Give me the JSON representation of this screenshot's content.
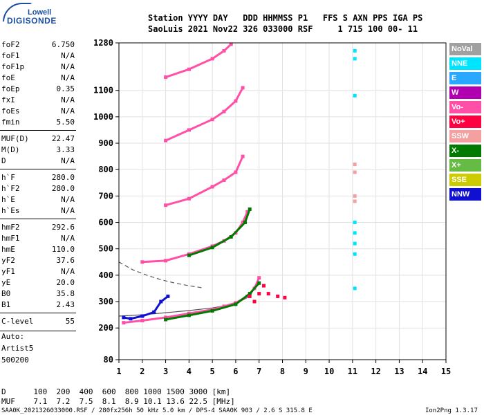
{
  "logo": {
    "line1": "Lowell",
    "line2": "DIGISONDE"
  },
  "header": {
    "row1": "Station YYYY DAY   DDD HHMMSS P1   FFS S AXN PPS IGA PS",
    "row2": "SaoLuis 2021 Nov22 326 033000 RSF     1 715 100 00- 11"
  },
  "params": [
    {
      "k": "foF2",
      "v": "6.750"
    },
    {
      "k": "foF1",
      "v": "N/A"
    },
    {
      "k": "foF1p",
      "v": "N/A"
    },
    {
      "k": "foE",
      "v": "N/A"
    },
    {
      "k": "foEp",
      "v": "0.35"
    },
    {
      "k": "fxI",
      "v": "N/A"
    },
    {
      "k": "foEs",
      "v": "N/A"
    },
    {
      "k": "fmin",
      "v": "5.50"
    },
    {
      "k": "MUF(D)",
      "v": "22.47"
    },
    {
      "k": "M(D)",
      "v": "3.33"
    },
    {
      "k": "D",
      "v": "N/A"
    },
    {
      "k": "h`F",
      "v": "280.0"
    },
    {
      "k": "h`F2",
      "v": "280.0"
    },
    {
      "k": "h`E",
      "v": "N/A"
    },
    {
      "k": "h`Es",
      "v": "N/A"
    },
    {
      "k": "hmF2",
      "v": "292.6"
    },
    {
      "k": "hmF1",
      "v": "N/A"
    },
    {
      "k": "hmE",
      "v": "110.0"
    },
    {
      "k": "yF2",
      "v": "37.6"
    },
    {
      "k": "yF1",
      "v": "N/A"
    },
    {
      "k": "yE",
      "v": "20.0"
    },
    {
      "k": "B0",
      "v": "35.8"
    },
    {
      "k": "B1",
      "v": "2.43"
    },
    {
      "k": "C-level",
      "v": "55"
    }
  ],
  "aux": [
    "Auto:",
    "Artist5",
    "500200"
  ],
  "legend": [
    {
      "label": "NoVal",
      "color": "#a0a0a0"
    },
    {
      "label": "NNE",
      "color": "#00e5ff"
    },
    {
      "label": "E",
      "color": "#2aa7ff"
    },
    {
      "label": "W",
      "color": "#b000b0"
    },
    {
      "label": "Vo-",
      "color": "#ff4fa7"
    },
    {
      "label": "Vo+",
      "color": "#ff0040"
    },
    {
      "label": "SSW",
      "color": "#f4a0a0"
    },
    {
      "label": "X-",
      "color": "#007a00"
    },
    {
      "label": "X+",
      "color": "#66bb44"
    },
    {
      "label": "SSE",
      "color": "#cccc00"
    },
    {
      "label": "NNW",
      "color": "#1010d0"
    }
  ],
  "footer": {
    "d_row": "D      100  200  400  600  800 1000 1500 3000 [km]",
    "muf_row": "MUF    7.1  7.2  7.5  8.1  8.9 10.1 13.6 22.5 [MHz]",
    "file_info": "SAA0K_2021326033000.RSF / 280fx256h 50 kHz 5.0 km / DPS-4 SAA0K 903 / 2.6 S 315.8 E",
    "version": "Ion2Png 1.3.17"
  },
  "chart_data": {
    "type": "scatter",
    "title": "",
    "xlabel": "",
    "ylabel": "",
    "xlim": [
      1,
      15
    ],
    "ylim": [
      80,
      1280
    ],
    "x_ticks": [
      1,
      2,
      3,
      4,
      5,
      6,
      7,
      8,
      9,
      10,
      11,
      12,
      13,
      14,
      15
    ],
    "y_ticks": [
      80,
      200,
      300,
      400,
      500,
      600,
      700,
      800,
      900,
      1000,
      1100,
      1280
    ],
    "grid": true,
    "legend_position": "right",
    "traces": [
      {
        "name": "Vo-",
        "color": "#ff4fa7",
        "points": [
          [
            1.2,
            220
          ],
          [
            2,
            228
          ],
          [
            3,
            240
          ],
          [
            4,
            255
          ],
          [
            5,
            270
          ],
          [
            5.5,
            282
          ],
          [
            6,
            295
          ],
          [
            6.5,
            320
          ],
          [
            6.8,
            350
          ],
          [
            7.0,
            390
          ]
        ]
      },
      {
        "name": "X-",
        "color": "#007a00",
        "points": [
          [
            3,
            232
          ],
          [
            4,
            248
          ],
          [
            5,
            265
          ],
          [
            6,
            290
          ],
          [
            6.6,
            330
          ],
          [
            7.0,
            370
          ]
        ]
      },
      {
        "name": "NNW",
        "color": "#1010d0",
        "points": [
          [
            1.2,
            240
          ],
          [
            1.5,
            235
          ],
          [
            2,
            245
          ],
          [
            2.5,
            260
          ],
          [
            2.8,
            300
          ],
          [
            3.1,
            320
          ]
        ]
      },
      {
        "name": "Vo- 2hop",
        "color": "#ff4fa7",
        "points": [
          [
            2,
            450
          ],
          [
            3,
            455
          ],
          [
            4,
            480
          ],
          [
            5,
            510
          ],
          [
            5.5,
            530
          ],
          [
            6,
            560
          ],
          [
            6.3,
            600
          ],
          [
            6.5,
            640
          ]
        ]
      },
      {
        "name": "X- 2hop",
        "color": "#007a00",
        "points": [
          [
            4,
            475
          ],
          [
            5,
            505
          ],
          [
            5.8,
            545
          ],
          [
            6.4,
            600
          ],
          [
            6.6,
            650
          ]
        ]
      },
      {
        "name": "Vo- 3hop",
        "color": "#ff4fa7",
        "points": [
          [
            3,
            665
          ],
          [
            4,
            690
          ],
          [
            5,
            735
          ],
          [
            5.5,
            760
          ],
          [
            6,
            790
          ],
          [
            6.3,
            850
          ]
        ]
      },
      {
        "name": "Vo- 4hop",
        "color": "#ff4fa7",
        "points": [
          [
            3,
            910
          ],
          [
            4,
            950
          ],
          [
            5,
            990
          ],
          [
            5.5,
            1020
          ],
          [
            6,
            1060
          ],
          [
            6.3,
            1110
          ]
        ]
      },
      {
        "name": "Vo- 5hop",
        "color": "#ff4fa7",
        "points": [
          [
            3,
            1150
          ],
          [
            4,
            1180
          ],
          [
            5,
            1220
          ],
          [
            5.5,
            1250
          ],
          [
            5.8,
            1275
          ]
        ]
      },
      {
        "name": "Vo+",
        "color": "#ff0040",
        "points": [
          [
            6.6,
            320
          ],
          [
            7,
            330
          ],
          [
            7.4,
            330
          ],
          [
            7.8,
            320
          ],
          [
            8.1,
            315
          ],
          [
            6.8,
            300
          ],
          [
            7.2,
            360
          ]
        ]
      },
      {
        "name": "NNE",
        "color": "#00e5ff",
        "points": [
          [
            11.1,
            1250
          ],
          [
            11.1,
            1220
          ],
          [
            11.1,
            1080
          ],
          [
            11.1,
            600
          ],
          [
            11.1,
            560
          ],
          [
            11.1,
            520
          ],
          [
            11.1,
            480
          ],
          [
            11.1,
            350
          ]
        ]
      },
      {
        "name": "SSW",
        "color": "#f4a0a0",
        "points": [
          [
            11.1,
            820
          ],
          [
            11.1,
            790
          ],
          [
            11.1,
            700
          ],
          [
            11.1,
            680
          ]
        ]
      }
    ],
    "fit_curves": [
      {
        "name": "profile-fit",
        "points": [
          [
            1,
            245
          ],
          [
            2,
            250
          ],
          [
            3,
            258
          ],
          [
            4,
            266
          ],
          [
            5,
            276
          ],
          [
            6,
            292
          ],
          [
            6.6,
            320
          ],
          [
            6.8,
            350
          ]
        ]
      },
      {
        "name": "dashed-profile",
        "dashed": true,
        "points": [
          [
            1,
            450
          ],
          [
            1.6,
            420
          ],
          [
            2.2,
            400
          ],
          [
            2.8,
            383
          ],
          [
            3.4,
            370
          ],
          [
            4,
            360
          ],
          [
            4.6,
            352
          ]
        ]
      }
    ]
  }
}
